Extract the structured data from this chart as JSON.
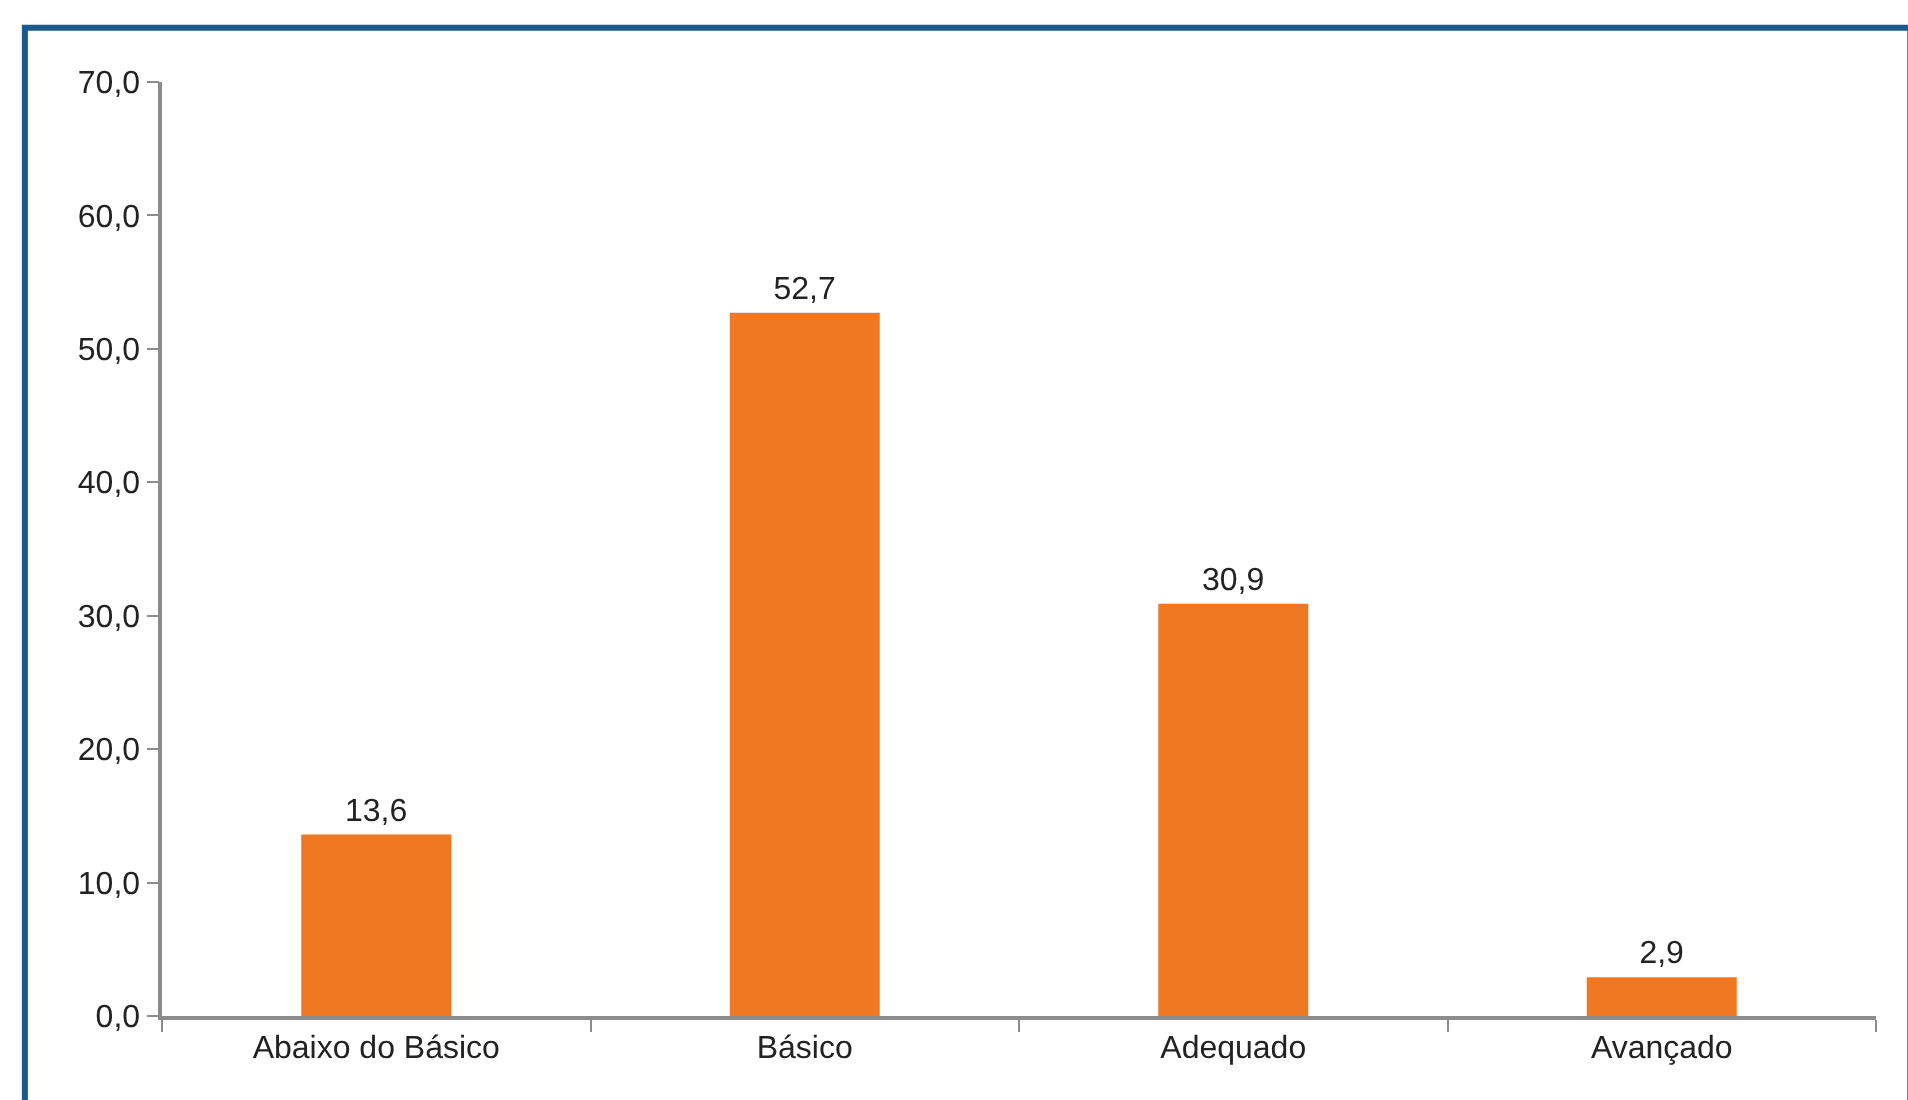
{
  "chart_data": {
    "type": "bar",
    "categories": [
      "Abaixo do Básico",
      "Básico",
      "Adequado",
      "Avançado"
    ],
    "values": [
      13.6,
      52.7,
      30.9,
      2.9
    ],
    "value_labels": [
      "13,6",
      "52,7",
      "30,9",
      "2,9"
    ],
    "color": "#f07823",
    "ylim": [
      0,
      70
    ],
    "yticks": [
      {
        "value": 0,
        "label": "0,0"
      },
      {
        "value": 10,
        "label": "10,0"
      },
      {
        "value": 20,
        "label": "20,0"
      },
      {
        "value": 30,
        "label": "30,0"
      },
      {
        "value": 40,
        "label": "40,0"
      },
      {
        "value": 50,
        "label": "50,0"
      },
      {
        "value": 60,
        "label": "60,0"
      },
      {
        "value": 70,
        "label": "70,0"
      }
    ]
  }
}
